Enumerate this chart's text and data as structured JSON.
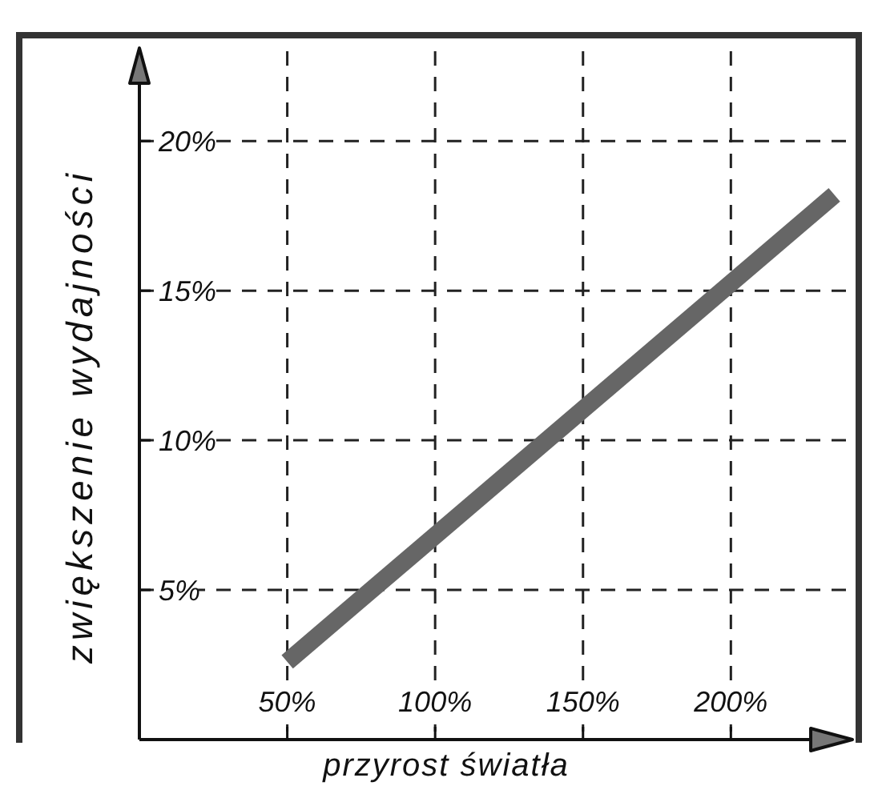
{
  "chart_data": {
    "type": "line",
    "xlabel": "przyrost światła",
    "ylabel": "zwiększenie wydajności",
    "x": [
      50,
      235
    ],
    "series": [
      {
        "color": "#666666",
        "values": [
          2.6,
          18.2
        ]
      }
    ],
    "xlim": [
      0,
      240
    ],
    "ylim": [
      0,
      23
    ],
    "xticks": [
      {
        "value": 50,
        "label": "50%"
      },
      {
        "value": 100,
        "label": "100%"
      },
      {
        "value": 150,
        "label": "150%"
      },
      {
        "value": 200,
        "label": "200%"
      }
    ],
    "yticks": [
      {
        "value": 5,
        "label": "5%"
      },
      {
        "value": 10,
        "label": "10%"
      },
      {
        "value": 15,
        "label": "15%"
      },
      {
        "value": 20,
        "label": "20%"
      }
    ],
    "grid": true
  }
}
